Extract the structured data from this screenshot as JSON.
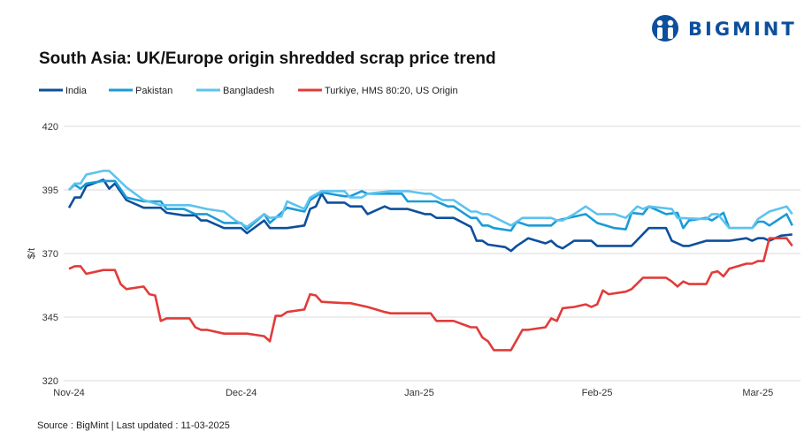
{
  "logo": {
    "text": "BIGMINT",
    "color": "#0d4f9c"
  },
  "chart_data": {
    "type": "line",
    "title": "South Asia: UK/Europe origin shredded scrap price trend",
    "ylabel": "$/t",
    "xlabel": "",
    "ylim": [
      320,
      420
    ],
    "yticks": [
      420,
      395,
      370,
      345,
      320
    ],
    "xlim": [
      "2024-11-01",
      "2025-03-07"
    ],
    "xticks": [
      {
        "date": "2024-11-01",
        "label": "Nov-24"
      },
      {
        "date": "2024-12-01",
        "label": "Dec-24"
      },
      {
        "date": "2025-01-01",
        "label": "Jan-25"
      },
      {
        "date": "2025-02-01",
        "label": "Feb-25"
      },
      {
        "date": "2025-03-01",
        "label": "Mar-25"
      }
    ],
    "grid": true,
    "legend_position": "top-left",
    "series": [
      {
        "name": "India",
        "color": "#0d4f9c",
        "points": [
          [
            "2024-11-01",
            388
          ],
          [
            "2024-11-02",
            392
          ],
          [
            "2024-11-03",
            392
          ],
          [
            "2024-11-04",
            396.5
          ],
          [
            "2024-11-07",
            399
          ],
          [
            "2024-11-08",
            395.5
          ],
          [
            "2024-11-09",
            397.5
          ],
          [
            "2024-11-11",
            391
          ],
          [
            "2024-11-14",
            388
          ],
          [
            "2024-11-17",
            388
          ],
          [
            "2024-11-18",
            386
          ],
          [
            "2024-11-21",
            385
          ],
          [
            "2024-11-23",
            385
          ],
          [
            "2024-11-24",
            383
          ],
          [
            "2024-11-25",
            383
          ],
          [
            "2024-11-28",
            380
          ],
          [
            "2024-12-01",
            380
          ],
          [
            "2024-12-02",
            378
          ],
          [
            "2024-12-05",
            383
          ],
          [
            "2024-12-06",
            380
          ],
          [
            "2024-12-09",
            380
          ],
          [
            "2024-12-12",
            381
          ],
          [
            "2024-12-13",
            387.5
          ],
          [
            "2024-12-14",
            388.5
          ],
          [
            "2024-12-15",
            393.5
          ],
          [
            "2024-12-16",
            390
          ],
          [
            "2024-12-19",
            390
          ],
          [
            "2024-12-20",
            388.5
          ],
          [
            "2024-12-22",
            388.5
          ],
          [
            "2024-12-23",
            385.5
          ],
          [
            "2024-12-26",
            388.5
          ],
          [
            "2024-12-27",
            387.5
          ],
          [
            "2024-12-30",
            387.5
          ],
          [
            "2025-01-02",
            385.5
          ],
          [
            "2025-01-03",
            385.5
          ],
          [
            "2025-01-04",
            384
          ],
          [
            "2025-01-07",
            384
          ],
          [
            "2025-01-10",
            380.5
          ],
          [
            "2025-01-11",
            375
          ],
          [
            "2025-01-12",
            375
          ],
          [
            "2025-01-13",
            373.5
          ],
          [
            "2025-01-16",
            372.5
          ],
          [
            "2025-01-17",
            371
          ],
          [
            "2025-01-18",
            373
          ],
          [
            "2025-01-20",
            376
          ],
          [
            "2025-01-23",
            374
          ],
          [
            "2025-01-24",
            375
          ],
          [
            "2025-01-25",
            373
          ],
          [
            "2025-01-26",
            372
          ],
          [
            "2025-01-28",
            375
          ],
          [
            "2025-01-31",
            375
          ],
          [
            "2025-02-01",
            373
          ],
          [
            "2025-02-07",
            373
          ],
          [
            "2025-02-10",
            380
          ],
          [
            "2025-02-13",
            380
          ],
          [
            "2025-02-14",
            375
          ],
          [
            "2025-02-16",
            373
          ],
          [
            "2025-02-17",
            373
          ],
          [
            "2025-02-20",
            375
          ],
          [
            "2025-02-24",
            375
          ],
          [
            "2025-02-27",
            376
          ],
          [
            "2025-02-28",
            375
          ],
          [
            "2025-03-01",
            376
          ],
          [
            "2025-03-02",
            376
          ],
          [
            "2025-03-03",
            375
          ],
          [
            "2025-03-05",
            377
          ],
          [
            "2025-03-07",
            377.5
          ]
        ]
      },
      {
        "name": "Pakistan",
        "color": "#1a9bd7",
        "points": [
          [
            "2024-11-01",
            395
          ],
          [
            "2024-11-02",
            397
          ],
          [
            "2024-11-03",
            395.5
          ],
          [
            "2024-11-04",
            397.5
          ],
          [
            "2024-11-07",
            398.5
          ],
          [
            "2024-11-09",
            398.5
          ],
          [
            "2024-11-11",
            392
          ],
          [
            "2024-11-14",
            390.5
          ],
          [
            "2024-11-17",
            390.5
          ],
          [
            "2024-11-18",
            387.5
          ],
          [
            "2024-11-21",
            387.5
          ],
          [
            "2024-11-23",
            385.5
          ],
          [
            "2024-11-25",
            385.5
          ],
          [
            "2024-11-28",
            382
          ],
          [
            "2024-12-01",
            382
          ],
          [
            "2024-12-02",
            379.5
          ],
          [
            "2024-12-05",
            385.5
          ],
          [
            "2024-12-06",
            382
          ],
          [
            "2024-12-09",
            388
          ],
          [
            "2024-12-12",
            386.5
          ],
          [
            "2024-12-13",
            391
          ],
          [
            "2024-12-15",
            394
          ],
          [
            "2024-12-19",
            392.5
          ],
          [
            "2024-12-20",
            392.5
          ],
          [
            "2024-12-22",
            394.5
          ],
          [
            "2024-12-23",
            393.5
          ],
          [
            "2024-12-29",
            393.5
          ],
          [
            "2024-12-30",
            390.5
          ],
          [
            "2025-01-04",
            390.5
          ],
          [
            "2025-01-06",
            388.5
          ],
          [
            "2025-01-07",
            388.5
          ],
          [
            "2025-01-10",
            384
          ],
          [
            "2025-01-11",
            384
          ],
          [
            "2025-01-12",
            381
          ],
          [
            "2025-01-13",
            381
          ],
          [
            "2025-01-14",
            380
          ],
          [
            "2025-01-17",
            379
          ],
          [
            "2025-01-18",
            382.5
          ],
          [
            "2025-01-20",
            381
          ],
          [
            "2025-01-24",
            381
          ],
          [
            "2025-01-25",
            383
          ],
          [
            "2025-01-30",
            385.5
          ],
          [
            "2025-02-01",
            382
          ],
          [
            "2025-02-04",
            380
          ],
          [
            "2025-02-06",
            379.5
          ],
          [
            "2025-02-07",
            386
          ],
          [
            "2025-02-09",
            385.5
          ],
          [
            "2025-02-10",
            388.5
          ],
          [
            "2025-02-13",
            385.5
          ],
          [
            "2025-02-15",
            386
          ],
          [
            "2025-02-16",
            380
          ],
          [
            "2025-02-17",
            383
          ],
          [
            "2025-02-20",
            384
          ],
          [
            "2025-02-21",
            383
          ],
          [
            "2025-02-23",
            386
          ],
          [
            "2025-02-24",
            380
          ],
          [
            "2025-02-28",
            380
          ],
          [
            "2025-03-01",
            382.5
          ],
          [
            "2025-03-02",
            382.5
          ],
          [
            "2025-03-03",
            381
          ],
          [
            "2025-03-06",
            385.5
          ],
          [
            "2025-03-07",
            381
          ]
        ]
      },
      {
        "name": "Bangladesh",
        "color": "#5ec3ee",
        "points": [
          [
            "2024-11-01",
            395
          ],
          [
            "2024-11-02",
            397.5
          ],
          [
            "2024-11-03",
            397.5
          ],
          [
            "2024-11-04",
            401
          ],
          [
            "2024-11-07",
            402.5
          ],
          [
            "2024-11-08",
            402.5
          ],
          [
            "2024-11-11",
            396
          ],
          [
            "2024-11-14",
            391
          ],
          [
            "2024-11-17",
            389
          ],
          [
            "2024-11-22",
            389
          ],
          [
            "2024-11-23",
            388.5
          ],
          [
            "2024-11-25",
            387.5
          ],
          [
            "2024-11-28",
            386.5
          ],
          [
            "2024-11-30",
            383
          ],
          [
            "2024-12-02",
            380.5
          ],
          [
            "2024-12-05",
            385.5
          ],
          [
            "2024-12-06",
            384
          ],
          [
            "2024-12-08",
            384.5
          ],
          [
            "2024-12-09",
            390.5
          ],
          [
            "2024-12-12",
            387.5
          ],
          [
            "2024-12-13",
            392
          ],
          [
            "2024-12-15",
            394.5
          ],
          [
            "2024-12-19",
            394.5
          ],
          [
            "2024-12-20",
            392
          ],
          [
            "2024-12-22",
            392
          ],
          [
            "2024-12-23",
            393.5
          ],
          [
            "2024-12-27",
            394.5
          ],
          [
            "2024-12-30",
            394.5
          ],
          [
            "2025-01-02",
            393.5
          ],
          [
            "2025-01-03",
            393.5
          ],
          [
            "2025-01-05",
            391
          ],
          [
            "2025-01-07",
            391
          ],
          [
            "2025-01-10",
            386.5
          ],
          [
            "2025-01-11",
            386.5
          ],
          [
            "2025-01-12",
            385.5
          ],
          [
            "2025-01-13",
            385.5
          ],
          [
            "2025-01-17",
            381
          ],
          [
            "2025-01-19",
            384
          ],
          [
            "2025-01-24",
            384
          ],
          [
            "2025-01-25",
            383
          ],
          [
            "2025-01-26",
            383
          ],
          [
            "2025-01-28",
            385.5
          ],
          [
            "2025-01-30",
            388.5
          ],
          [
            "2025-02-01",
            385.5
          ],
          [
            "2025-02-04",
            385.5
          ],
          [
            "2025-02-06",
            384
          ],
          [
            "2025-02-08",
            388.5
          ],
          [
            "2025-02-09",
            387.5
          ],
          [
            "2025-02-10",
            388.5
          ],
          [
            "2025-02-14",
            387.5
          ],
          [
            "2025-02-15",
            384
          ],
          [
            "2025-02-20",
            383.5
          ],
          [
            "2025-02-21",
            385.5
          ],
          [
            "2025-02-22",
            385.5
          ],
          [
            "2025-02-24",
            380
          ],
          [
            "2025-02-28",
            380
          ],
          [
            "2025-03-01",
            383.5
          ],
          [
            "2025-03-03",
            386.5
          ],
          [
            "2025-03-06",
            388.5
          ],
          [
            "2025-03-07",
            385.5
          ]
        ]
      },
      {
        "name": "Turkiye, HMS 80:20, US Origin",
        "color": "#e03c3a",
        "points": [
          [
            "2024-11-01",
            364
          ],
          [
            "2024-11-02",
            365
          ],
          [
            "2024-11-03",
            365
          ],
          [
            "2024-11-04",
            362
          ],
          [
            "2024-11-07",
            363.5
          ],
          [
            "2024-11-09",
            363.5
          ],
          [
            "2024-11-10",
            358
          ],
          [
            "2024-11-11",
            356
          ],
          [
            "2024-11-14",
            357
          ],
          [
            "2024-11-15",
            354
          ],
          [
            "2024-11-16",
            353.5
          ],
          [
            "2024-11-17",
            343.5
          ],
          [
            "2024-11-18",
            344.5
          ],
          [
            "2024-11-22",
            344.5
          ],
          [
            "2024-11-23",
            341
          ],
          [
            "2024-11-24",
            340
          ],
          [
            "2024-11-25",
            340
          ],
          [
            "2024-11-28",
            338.5
          ],
          [
            "2024-12-02",
            338.5
          ],
          [
            "2024-12-05",
            337.5
          ],
          [
            "2024-12-06",
            335.5
          ],
          [
            "2024-12-07",
            345.5
          ],
          [
            "2024-12-08",
            345.5
          ],
          [
            "2024-12-09",
            347
          ],
          [
            "2024-12-12",
            348
          ],
          [
            "2024-12-13",
            354
          ],
          [
            "2024-12-14",
            353.5
          ],
          [
            "2024-12-15",
            351
          ],
          [
            "2024-12-19",
            350.5
          ],
          [
            "2024-12-20",
            350.5
          ],
          [
            "2024-12-23",
            349
          ],
          [
            "2024-12-26",
            347
          ],
          [
            "2024-12-27",
            346.5
          ],
          [
            "2025-01-03",
            346.5
          ],
          [
            "2025-01-04",
            343.5
          ],
          [
            "2025-01-07",
            343.5
          ],
          [
            "2025-01-10",
            341
          ],
          [
            "2025-01-11",
            341
          ],
          [
            "2025-01-12",
            337
          ],
          [
            "2025-01-13",
            335.5
          ],
          [
            "2025-01-14",
            332
          ],
          [
            "2025-01-17",
            332
          ],
          [
            "2025-01-19",
            340
          ],
          [
            "2025-01-20",
            340
          ],
          [
            "2025-01-23",
            341
          ],
          [
            "2025-01-24",
            344.5
          ],
          [
            "2025-01-25",
            343.5
          ],
          [
            "2025-01-26",
            348.5
          ],
          [
            "2025-01-28",
            349
          ],
          [
            "2025-01-30",
            350
          ],
          [
            "2025-01-31",
            349
          ],
          [
            "2025-02-01",
            350
          ],
          [
            "2025-02-02",
            355.5
          ],
          [
            "2025-02-03",
            354
          ],
          [
            "2025-02-06",
            355
          ],
          [
            "2025-02-07",
            356
          ],
          [
            "2025-02-09",
            360.5
          ],
          [
            "2025-02-13",
            360.5
          ],
          [
            "2025-02-14",
            359
          ],
          [
            "2025-02-15",
            357
          ],
          [
            "2025-02-16",
            359
          ],
          [
            "2025-02-17",
            358
          ],
          [
            "2025-02-20",
            358
          ],
          [
            "2025-02-21",
            362.5
          ],
          [
            "2025-02-22",
            363
          ],
          [
            "2025-02-23",
            361
          ],
          [
            "2025-02-24",
            364
          ],
          [
            "2025-02-27",
            366
          ],
          [
            "2025-02-28",
            366
          ],
          [
            "2025-03-01",
            367
          ],
          [
            "2025-03-02",
            367
          ],
          [
            "2025-03-03",
            376
          ],
          [
            "2025-03-06",
            376
          ],
          [
            "2025-03-07",
            373
          ]
        ]
      }
    ]
  },
  "footer": {
    "source": "Source : BigMint | Last updated : 11-03-2025"
  }
}
